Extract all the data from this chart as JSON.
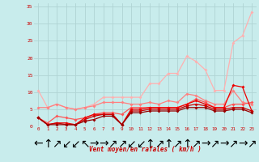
{
  "xlabel": "Vent moyen/en rafales ( km/h )",
  "background_color": "#c8ecec",
  "grid_color": "#b0d4d4",
  "x_values": [
    0,
    1,
    2,
    3,
    4,
    5,
    6,
    7,
    8,
    9,
    10,
    11,
    12,
    13,
    14,
    15,
    16,
    17,
    18,
    19,
    20,
    21,
    22,
    23
  ],
  "series": [
    {
      "color": "#ffb0b0",
      "linewidth": 0.9,
      "markersize": 2.0,
      "values": [
        10.5,
        5.5,
        6.5,
        5.5,
        5.0,
        5.5,
        6.5,
        8.5,
        8.5,
        8.5,
        8.5,
        8.5,
        12.5,
        12.5,
        15.5,
        15.5,
        20.5,
        19.0,
        16.5,
        10.5,
        10.5,
        24.5,
        26.5,
        33.5
      ]
    },
    {
      "color": "#ff8080",
      "linewidth": 0.9,
      "markersize": 2.0,
      "values": [
        5.5,
        5.5,
        6.5,
        5.5,
        5.0,
        5.5,
        6.0,
        7.0,
        7.0,
        7.0,
        6.5,
        6.5,
        7.0,
        6.5,
        7.5,
        7.0,
        9.5,
        9.0,
        7.5,
        6.5,
        6.5,
        10.5,
        7.0,
        6.5
      ]
    },
    {
      "color": "#ff5555",
      "linewidth": 0.9,
      "markersize": 2.0,
      "values": [
        2.5,
        1.0,
        3.0,
        2.5,
        2.0,
        2.5,
        3.5,
        4.0,
        4.0,
        3.5,
        5.5,
        5.5,
        5.5,
        5.5,
        5.5,
        5.5,
        6.5,
        8.0,
        7.0,
        5.5,
        5.5,
        6.5,
        6.5,
        7.0
      ]
    },
    {
      "color": "#ee0000",
      "linewidth": 0.9,
      "markersize": 2.0,
      "values": [
        2.5,
        0.5,
        1.0,
        1.0,
        0.5,
        2.5,
        3.5,
        3.5,
        3.5,
        0.5,
        5.0,
        5.0,
        5.5,
        5.5,
        5.5,
        5.5,
        6.5,
        7.5,
        6.5,
        5.5,
        5.5,
        12.0,
        11.5,
        4.5
      ]
    },
    {
      "color": "#cc0000",
      "linewidth": 0.9,
      "markersize": 2.0,
      "values": [
        2.5,
        0.5,
        1.0,
        0.5,
        0.5,
        2.0,
        3.0,
        3.5,
        3.5,
        0.5,
        4.5,
        4.5,
        5.0,
        5.0,
        5.0,
        5.0,
        6.0,
        6.5,
        6.0,
        5.0,
        5.0,
        5.5,
        5.5,
        4.5
      ]
    },
    {
      "color": "#990000",
      "linewidth": 0.9,
      "markersize": 2.0,
      "values": [
        2.5,
        0.5,
        0.5,
        0.5,
        0.5,
        1.5,
        2.0,
        3.0,
        3.0,
        0.5,
        4.0,
        4.0,
        4.5,
        4.5,
        4.5,
        4.5,
        5.5,
        5.5,
        5.5,
        4.5,
        4.5,
        5.0,
        5.0,
        4.0
      ]
    }
  ],
  "wind_arrows": [
    "←",
    "↑",
    "↗",
    "↙",
    "↙",
    "↖",
    "→",
    "→",
    "↗",
    "↗",
    "↙",
    "↙",
    "↑",
    "↗",
    "↑",
    "↗",
    "↑",
    "↗",
    "→",
    "↗",
    "→",
    "↗",
    "→",
    "↗"
  ],
  "ylim": [
    0,
    36
  ],
  "yticks": [
    0,
    5,
    10,
    15,
    20,
    25,
    30,
    35
  ],
  "xlim": [
    -0.5,
    23.5
  ],
  "xticks": [
    0,
    1,
    2,
    3,
    4,
    5,
    6,
    7,
    8,
    9,
    10,
    11,
    12,
    13,
    14,
    15,
    16,
    17,
    18,
    19,
    20,
    21,
    22,
    23
  ]
}
